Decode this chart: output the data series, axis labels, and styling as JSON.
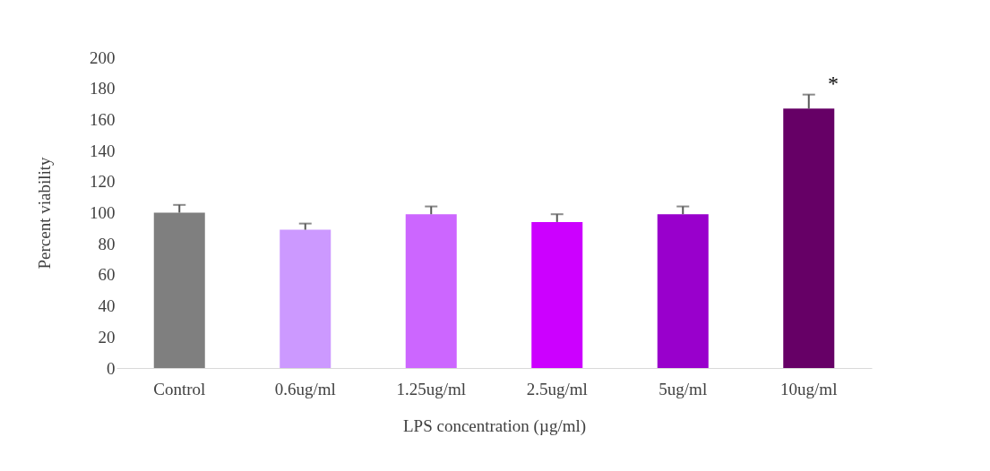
{
  "chart_data": {
    "type": "bar",
    "xlabel": "LPS concentration (µg/ml)",
    "ylabel": "Percent viability",
    "categories": [
      "Control",
      "0.6ug/ml",
      "1.25ug/ml",
      "2.5ug/ml",
      "5ug/ml",
      "10ug/ml"
    ],
    "values": [
      100,
      89,
      99,
      94,
      99,
      167
    ],
    "colors": [
      "#7f7f7f",
      "#cc99ff",
      "#cc66ff",
      "#cc00ff",
      "#9900cc",
      "#660066"
    ],
    "errors": [
      [
        100,
        105
      ],
      [
        89,
        93
      ],
      [
        99,
        104
      ],
      [
        94,
        99
      ],
      [
        99,
        104
      ],
      [
        167,
        176
      ]
    ],
    "ylim": [
      0,
      200
    ],
    "yticks": [
      0,
      20,
      40,
      60,
      80,
      100,
      120,
      140,
      160,
      180,
      200
    ],
    "grid": false,
    "annotations": [
      "*"
    ]
  }
}
